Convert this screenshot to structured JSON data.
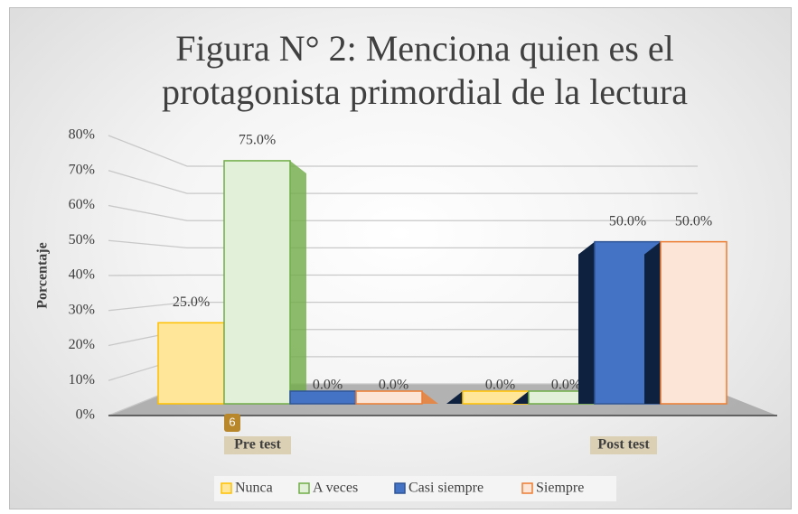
{
  "chart_data": {
    "type": "bar3d",
    "title": "Figura N° 2: Menciona quien es el protagonista primordial de la lectura",
    "y_label": "Porcentaje",
    "categories": [
      "Pre test",
      "Post test"
    ],
    "series": [
      {
        "name": "Nunca",
        "color": "#ffe699",
        "edge": "#ffc000",
        "values": [
          25,
          0
        ],
        "value_labels": [
          "25.0%",
          "0.0%"
        ]
      },
      {
        "name": "A veces",
        "color": "#e2f0d9",
        "edge": "#70ad47",
        "values": [
          75,
          0
        ],
        "value_labels": [
          "75.0%",
          "0.0%"
        ]
      },
      {
        "name": "Casi siempre",
        "color": "#4472c4",
        "edge": "#2f5597",
        "values": [
          0,
          50
        ],
        "value_labels": [
          "0.0%",
          "50.0%"
        ]
      },
      {
        "name": "Siempre",
        "color": "#fce4d6",
        "edge": "#ed7d31",
        "values": [
          0,
          50
        ],
        "value_labels": [
          "0.0%",
          "50.0%"
        ]
      }
    ],
    "ylim": [
      0,
      80
    ],
    "yticks": [
      {
        "value": 0,
        "label": "0%"
      },
      {
        "value": 10,
        "label": "10%"
      },
      {
        "value": 20,
        "label": "20%"
      },
      {
        "value": 30,
        "label": "30%"
      },
      {
        "value": 40,
        "label": "40%"
      },
      {
        "value": 50,
        "label": "50%"
      },
      {
        "value": 60,
        "label": "60%"
      },
      {
        "value": 70,
        "label": "70%"
      },
      {
        "value": 80,
        "label": "80%"
      }
    ],
    "grid": true,
    "legend": "bottom",
    "badge": "6"
  }
}
